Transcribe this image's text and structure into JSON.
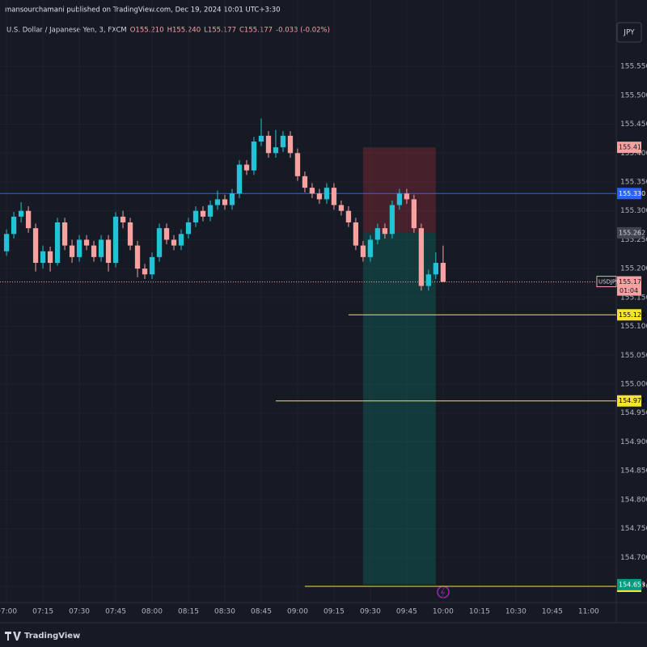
{
  "header": {
    "published": "mansourchamani published on TradingView.com, Dec 19, 2024 10:01 UTC+3:30"
  },
  "footer": {
    "brand": "TradingView"
  },
  "chart_data": {
    "type": "candlestick",
    "title": "U.S. Dollar / Japanese Yen, 3, FXCM",
    "ohlc_labels": [
      "O155.210",
      "H155.240",
      "L155.177",
      "C155.177",
      "-0.033 (-0.02%)"
    ],
    "currency": "JPY",
    "up_color": "#22c3d6",
    "down_color": "#f7a1a1",
    "open": [
      155.23,
      155.26,
      155.29,
      155.3,
      155.27,
      155.21,
      155.23,
      155.21,
      155.28,
      155.24,
      155.22,
      155.25,
      155.24,
      155.22,
      155.25,
      155.21,
      155.29,
      155.28,
      155.24,
      155.2,
      155.19,
      155.22,
      155.27,
      155.25,
      155.24,
      155.26,
      155.28,
      155.3,
      155.29,
      155.31,
      155.32,
      155.31,
      155.33,
      155.38,
      155.37,
      155.42,
      155.43,
      155.4,
      155.41,
      155.43,
      155.4,
      155.36,
      155.34,
      155.33,
      155.32,
      155.34,
      155.31,
      155.3,
      155.28,
      155.24,
      155.22,
      155.25,
      155.27,
      155.26,
      155.31,
      155.33,
      155.32,
      155.27,
      155.17,
      155.19,
      155.21
    ],
    "high": [
      155.268,
      155.298,
      155.315,
      155.308,
      155.278,
      155.24,
      155.238,
      155.288,
      155.288,
      155.25,
      155.258,
      155.258,
      155.248,
      155.258,
      155.258,
      155.298,
      155.3,
      155.288,
      155.248,
      155.208,
      155.228,
      155.278,
      155.278,
      155.258,
      155.268,
      155.288,
      155.308,
      155.308,
      155.318,
      155.335,
      155.328,
      155.338,
      155.388,
      155.388,
      155.428,
      155.46,
      155.438,
      155.44,
      155.438,
      155.438,
      155.408,
      155.368,
      155.348,
      155.338,
      155.348,
      155.348,
      155.318,
      155.308,
      155.288,
      155.248,
      155.258,
      155.278,
      155.278,
      155.318,
      155.338,
      155.338,
      155.328,
      155.278,
      155.198,
      155.228,
      155.24
    ],
    "low": [
      155.222,
      155.252,
      155.28,
      155.262,
      155.195,
      155.2,
      155.195,
      155.205,
      155.232,
      155.21,
      155.212,
      155.232,
      155.212,
      155.212,
      155.195,
      155.202,
      155.27,
      155.232,
      155.185,
      155.182,
      155.182,
      155.212,
      155.242,
      155.232,
      155.232,
      155.252,
      155.272,
      155.282,
      155.282,
      155.302,
      155.302,
      155.302,
      155.322,
      155.362,
      155.362,
      155.412,
      155.392,
      155.392,
      155.402,
      155.392,
      155.352,
      155.332,
      155.322,
      155.312,
      155.312,
      155.302,
      155.292,
      155.272,
      155.232,
      155.212,
      155.212,
      155.242,
      155.252,
      155.252,
      155.302,
      155.312,
      155.262,
      155.162,
      155.162,
      155.182,
      155.177
    ],
    "close": [
      155.26,
      155.29,
      155.3,
      155.27,
      155.21,
      155.23,
      155.21,
      155.28,
      155.24,
      155.22,
      155.25,
      155.24,
      155.22,
      155.25,
      155.21,
      155.29,
      155.28,
      155.24,
      155.2,
      155.19,
      155.22,
      155.27,
      155.25,
      155.24,
      155.26,
      155.28,
      155.3,
      155.29,
      155.31,
      155.32,
      155.31,
      155.33,
      155.38,
      155.37,
      155.42,
      155.43,
      155.4,
      155.41,
      155.43,
      155.4,
      155.36,
      155.34,
      155.33,
      155.32,
      155.34,
      155.31,
      155.3,
      155.28,
      155.24,
      155.22,
      155.25,
      155.27,
      155.26,
      155.31,
      155.33,
      155.32,
      155.27,
      155.17,
      155.19,
      155.21,
      155.177
    ],
    "xlim": [
      -0.9,
      83.8
    ],
    "xticks": [
      {
        "value": 0,
        "label": "07:00"
      },
      {
        "value": 5,
        "label": "07:15"
      },
      {
        "value": 10,
        "label": "07:30"
      },
      {
        "value": 15,
        "label": "07:45"
      },
      {
        "value": 20,
        "label": "08:00"
      },
      {
        "value": 25,
        "label": "08:15"
      },
      {
        "value": 30,
        "label": "08:30"
      },
      {
        "value": 35,
        "label": "08:45"
      },
      {
        "value": 40,
        "label": "09:00"
      },
      {
        "value": 45,
        "label": "09:15"
      },
      {
        "value": 50,
        "label": "09:30"
      },
      {
        "value": 55,
        "label": "09:45"
      },
      {
        "value": 60,
        "label": "10:00"
      },
      {
        "value": 65,
        "label": "10:15"
      },
      {
        "value": 70,
        "label": "10:30"
      },
      {
        "value": 75,
        "label": "10:45"
      },
      {
        "value": 80,
        "label": "11:00"
      }
    ],
    "ylim": [
      154.622,
      155.665
    ],
    "yticks": [
      {
        "value": 155.55,
        "label": "155.550"
      },
      {
        "value": 155.5,
        "label": "155.500"
      },
      {
        "value": 155.45,
        "label": "155.450"
      },
      {
        "value": 155.4,
        "label": "155.400"
      },
      {
        "value": 155.35,
        "label": "155.350"
      },
      {
        "value": 155.3,
        "label": "155.300"
      },
      {
        "value": 155.25,
        "label": "155.250"
      },
      {
        "value": 155.2,
        "label": "155.200"
      },
      {
        "value": 155.15,
        "label": "155.150"
      },
      {
        "value": 155.1,
        "label": "155.100"
      },
      {
        "value": 155.05,
        "label": "155.050"
      },
      {
        "value": 155,
        "label": "155.000"
      },
      {
        "value": 154.95,
        "label": "154.950"
      },
      {
        "value": 154.9,
        "label": "154.900"
      },
      {
        "value": 154.85,
        "label": "154.850"
      },
      {
        "value": 154.8,
        "label": "154.800"
      },
      {
        "value": 154.75,
        "label": "154.750"
      },
      {
        "value": 154.7,
        "label": "154.700"
      },
      {
        "value": 154.65,
        "label": "154.650"
      }
    ],
    "last_price": {
      "symbol": "USDJPY",
      "value": 155.177,
      "label": "155.177",
      "countdown": "01:04"
    },
    "lines": [
      {
        "value": 155.33,
        "label": "155.330",
        "color": "#2962ff"
      },
      {
        "value": 155.12,
        "label": "155.120",
        "color": "#f5e52b",
        "from": 47
      },
      {
        "value": 154.971,
        "label": "154.971",
        "color": "#f5e52b",
        "from": 37
      },
      {
        "value": 154.65,
        "label": "154.650",
        "color": "#f5e52b",
        "from": 41
      }
    ],
    "position": {
      "from": 49,
      "to": 59,
      "stop": {
        "value": 155.41,
        "label": "155.410"
      },
      "entry": {
        "value": 155.262,
        "label": "155.262"
      },
      "target": {
        "value": 154.653,
        "label": "154.653"
      }
    }
  }
}
